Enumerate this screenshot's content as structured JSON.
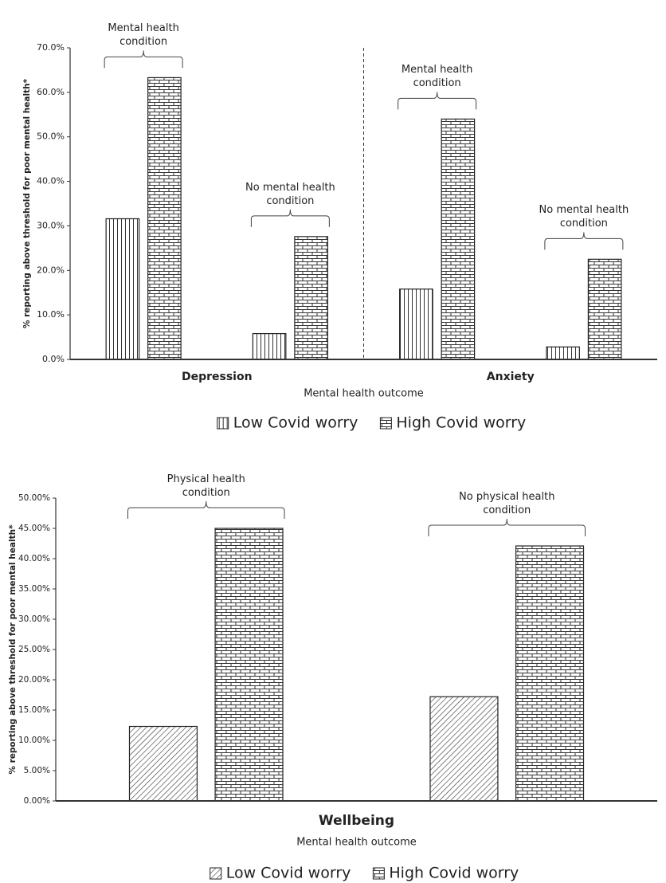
{
  "chart_data": [
    {
      "type": "bar",
      "y_label": "% reporting above threshold for poor mental health*",
      "x_label": "Mental health outcome",
      "category_groups": [
        "Depression",
        "Anxiety"
      ],
      "categories": [
        "Mental health condition",
        "No mental health condition",
        "Mental health condition",
        "No mental health condition"
      ],
      "series": [
        {
          "name": "Low Covid worry",
          "pattern": "vertical",
          "values": [
            31.6,
            5.8,
            15.8,
            2.8
          ]
        },
        {
          "name": "High Covid worry",
          "pattern": "brick",
          "values": [
            63.3,
            27.6,
            54.0,
            22.5
          ]
        }
      ],
      "ylim": [
        0,
        70
      ],
      "yticks": [
        {
          "value": 0,
          "label": "0.0%"
        },
        {
          "value": 10,
          "label": "10.0%"
        },
        {
          "value": 20,
          "label": "20.0%"
        },
        {
          "value": 30,
          "label": "30.0%"
        },
        {
          "value": 40,
          "label": "40.0%"
        },
        {
          "value": 50,
          "label": "50.0%"
        },
        {
          "value": 60,
          "label": "60.0%"
        },
        {
          "value": 70,
          "label": "70.0%"
        }
      ],
      "group_divider": "dashed",
      "legend": "bottom"
    },
    {
      "type": "bar",
      "y_label": "% reporting above threshold for poor mental health*",
      "x_label": "Mental health outcome",
      "category_groups": [
        "Wellbeing"
      ],
      "categories": [
        "Physical health condition",
        "No physical health condition"
      ],
      "series": [
        {
          "name": "Low Covid worry",
          "pattern": "diagonal",
          "values": [
            12.3,
            17.2
          ]
        },
        {
          "name": "High Covid worry",
          "pattern": "brick",
          "values": [
            45.0,
            42.1
          ]
        }
      ],
      "ylim": [
        0,
        50
      ],
      "yticks": [
        {
          "value": 0,
          "label": "0.00%"
        },
        {
          "value": 5,
          "label": "5.00%"
        },
        {
          "value": 10,
          "label": "10.00%"
        },
        {
          "value": 15,
          "label": "15.00%"
        },
        {
          "value": 20,
          "label": "20.00%"
        },
        {
          "value": 25,
          "label": "25.00%"
        },
        {
          "value": 30,
          "label": "30.00%"
        },
        {
          "value": 35,
          "label": "35.00%"
        },
        {
          "value": 40,
          "label": "40.00%"
        },
        {
          "value": 45,
          "label": "45.00%"
        },
        {
          "value": 50,
          "label": "50.00%"
        }
      ],
      "legend": "bottom"
    }
  ]
}
